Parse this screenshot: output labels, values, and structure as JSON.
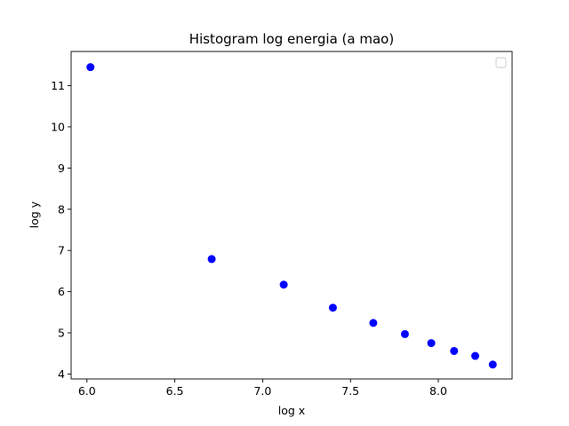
{
  "chart_data": {
    "type": "scatter",
    "title": "Histogram log energia (a mao)",
    "xlabel": "log x",
    "ylabel": "log y",
    "xlim": [
      5.91,
      8.42
    ],
    "ylim": [
      3.88,
      11.83
    ],
    "xticks": [
      6.0,
      6.5,
      7.0,
      7.5,
      8.0
    ],
    "yticks": [
      4,
      5,
      6,
      7,
      8,
      9,
      10,
      11
    ],
    "xtick_labels": [
      "6.0",
      "6.5",
      "7.0",
      "7.5",
      "8.0"
    ],
    "ytick_labels": [
      "4",
      "5",
      "6",
      "7",
      "8",
      "9",
      "10",
      "11"
    ],
    "grid": false,
    "legend": {
      "placement": "top-right",
      "entries": []
    },
    "series": [
      {
        "color": "#0000ff",
        "marker": "circle",
        "x": [
          6.02,
          6.71,
          7.12,
          7.4,
          7.63,
          7.81,
          7.96,
          8.09,
          8.21,
          8.31
        ],
        "y": [
          11.45,
          6.79,
          6.17,
          5.61,
          5.24,
          4.97,
          4.75,
          4.56,
          4.44,
          4.23
        ]
      }
    ]
  }
}
